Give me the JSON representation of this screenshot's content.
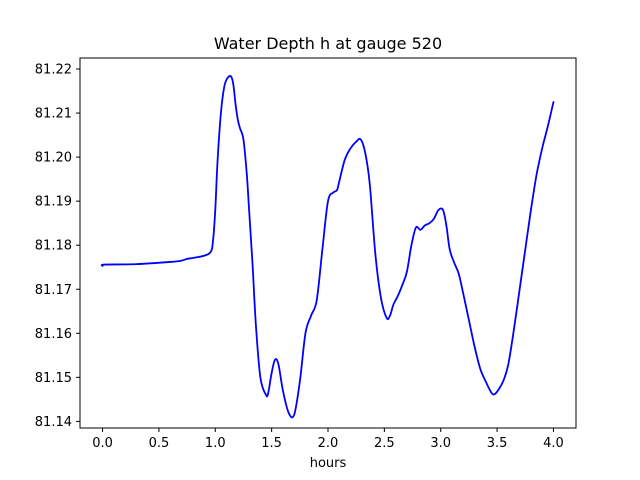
{
  "chart_data": {
    "type": "line",
    "title": "Water Depth h at gauge 520",
    "xlabel": "hours",
    "ylabel": "",
    "xlim": [
      -0.2,
      4.2
    ],
    "ylim": [
      81.1385,
      81.2225
    ],
    "x_ticks": [
      0.0,
      0.5,
      1.0,
      1.5,
      2.0,
      2.5,
      3.0,
      3.5,
      4.0
    ],
    "x_tick_labels": [
      "0.0",
      "0.5",
      "1.0",
      "1.5",
      "2.0",
      "2.5",
      "3.0",
      "3.5",
      "4.0"
    ],
    "y_ticks": [
      81.14,
      81.15,
      81.16,
      81.17,
      81.18,
      81.19,
      81.2,
      81.21,
      81.22
    ],
    "y_tick_labels": [
      "81.14",
      "81.15",
      "81.16",
      "81.17",
      "81.18",
      "81.19",
      "81.20",
      "81.21",
      "81.22"
    ],
    "grid": false,
    "series": [
      {
        "color": "#0000ff",
        "x": [
          0.0,
          0.02,
          0.3,
          0.6,
          0.7,
          0.75,
          0.8,
          0.9,
          0.96,
          0.98,
          1.0,
          1.02,
          1.05,
          1.08,
          1.11,
          1.14,
          1.16,
          1.18,
          1.2,
          1.22,
          1.25,
          1.28,
          1.3,
          1.33,
          1.36,
          1.4,
          1.45,
          1.47,
          1.5,
          1.53,
          1.56,
          1.6,
          1.65,
          1.7,
          1.75,
          1.8,
          1.85,
          1.9,
          1.95,
          2.0,
          2.05,
          2.08,
          2.1,
          2.15,
          2.2,
          2.25,
          2.29,
          2.33,
          2.37,
          2.42,
          2.47,
          2.52,
          2.55,
          2.58,
          2.62,
          2.66,
          2.7,
          2.74,
          2.78,
          2.82,
          2.86,
          2.9,
          2.94,
          2.98,
          3.02,
          3.05,
          3.08,
          3.12,
          3.16,
          3.2,
          3.25,
          3.3,
          3.35,
          3.4,
          3.45,
          3.48,
          3.52,
          3.56,
          3.6,
          3.65,
          3.7,
          3.75,
          3.8,
          3.85,
          3.9,
          3.95,
          4.0
        ],
        "values": [
          81.1753,
          81.1756,
          81.1757,
          81.1762,
          81.1765,
          81.1769,
          81.1771,
          81.1776,
          81.1785,
          81.181,
          81.188,
          81.199,
          81.21,
          81.216,
          81.218,
          81.2183,
          81.2165,
          81.212,
          81.2085,
          81.2065,
          81.204,
          81.196,
          81.188,
          81.176,
          81.162,
          81.15,
          81.146,
          81.1465,
          81.151,
          81.154,
          81.153,
          81.147,
          81.142,
          81.1415,
          81.149,
          81.16,
          81.164,
          81.1675,
          81.179,
          81.19,
          81.192,
          81.1925,
          81.1945,
          81.1995,
          81.202,
          81.2035,
          81.204,
          81.201,
          81.194,
          81.178,
          81.168,
          81.1635,
          81.164,
          81.1665,
          81.1685,
          81.171,
          81.174,
          81.18,
          81.184,
          81.1835,
          81.1845,
          81.185,
          81.186,
          81.188,
          81.188,
          81.1845,
          81.179,
          81.176,
          81.1735,
          81.169,
          81.163,
          81.157,
          81.152,
          81.149,
          81.1465,
          81.1462,
          81.1475,
          81.1495,
          81.153,
          81.161,
          81.17,
          81.179,
          81.188,
          81.196,
          81.202,
          81.207,
          81.2125
        ]
      }
    ]
  }
}
